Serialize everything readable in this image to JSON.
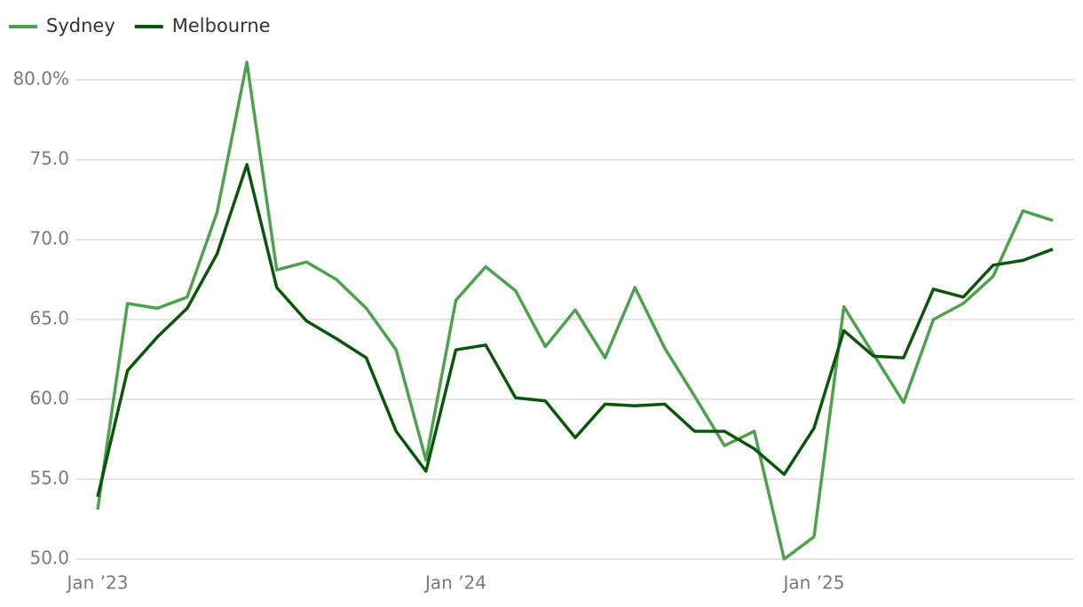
{
  "chart_data": {
    "type": "line",
    "categories": [
      "Jan ’23",
      null,
      null,
      null,
      null,
      null,
      null,
      null,
      null,
      null,
      null,
      null,
      "Jan ’24",
      null,
      null,
      null,
      null,
      null,
      null,
      null,
      null,
      null,
      null,
      null,
      "Jan ’25",
      null,
      null,
      null,
      null,
      null,
      null,
      null,
      null
    ],
    "series": [
      {
        "name": "Sydney",
        "color": "#4ea24e",
        "values": [
          53.1,
          66.0,
          65.7,
          66.4,
          71.7,
          81.1,
          68.1,
          68.6,
          67.5,
          65.7,
          63.1,
          56.2,
          66.2,
          68.3,
          66.8,
          63.3,
          65.6,
          62.6,
          67.0,
          63.2,
          60.2,
          57.1,
          58.0,
          50.0,
          51.4,
          65.8,
          62.8,
          59.8,
          65.0,
          66.0,
          67.7,
          71.8,
          71.2
        ]
      },
      {
        "name": "Melbourne",
        "color": "#0b560b",
        "values": [
          53.9,
          61.8,
          63.9,
          65.7,
          69.1,
          74.7,
          67.0,
          64.9,
          63.8,
          62.6,
          58.0,
          55.5,
          63.1,
          63.4,
          60.1,
          59.9,
          57.6,
          59.7,
          59.6,
          59.7,
          58.0,
          58.0,
          56.9,
          55.3,
          58.2,
          64.3,
          62.7,
          62.6,
          66.9,
          66.4,
          68.4,
          68.7,
          69.4
        ]
      }
    ],
    "ylim": [
      50,
      82
    ],
    "yticks": [
      {
        "value": 50,
        "label": "50.0"
      },
      {
        "value": 55,
        "label": "55.0"
      },
      {
        "value": 60,
        "label": "60.0"
      },
      {
        "value": 65,
        "label": "65.0"
      },
      {
        "value": 70,
        "label": "70.0"
      },
      {
        "value": 75,
        "label": "75.0"
      },
      {
        "value": 80,
        "label": "80.0%"
      }
    ],
    "grid": true,
    "legend": "top-left"
  }
}
